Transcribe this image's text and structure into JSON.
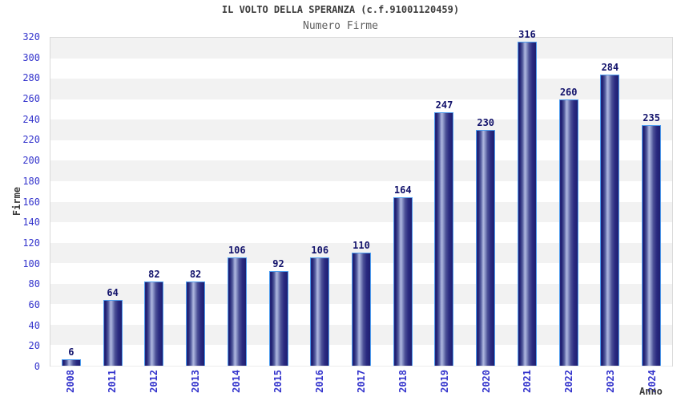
{
  "header": {
    "title": "IL VOLTO DELLA SPERANZA (c.f.91001120459)",
    "subtitle": "Numero Firme"
  },
  "chart_data": {
    "type": "bar",
    "title": "IL VOLTO DELLA SPERANZA (c.f.91001120459)",
    "subtitle": "Numero Firme",
    "categories": [
      "2008",
      "2011",
      "2012",
      "2013",
      "2014",
      "2015",
      "2016",
      "2017",
      "2018",
      "2019",
      "2020",
      "2021",
      "2022",
      "2023",
      "2024"
    ],
    "values": [
      6,
      64,
      82,
      82,
      106,
      92,
      106,
      110,
      164,
      247,
      230,
      316,
      260,
      284,
      235
    ],
    "xlabel": "Anno",
    "ylabel": "Firme",
    "ylim": [
      0,
      320
    ],
    "ytick_step": 20,
    "ytick_labels": [
      "0",
      "20",
      "40",
      "60",
      "80",
      "100",
      "120",
      "140",
      "160",
      "180",
      "200",
      "220",
      "240",
      "260",
      "280",
      "300",
      "320"
    ],
    "grid": "horizontal-alternating-bands",
    "legend": "none",
    "colors": {
      "bar_edge_dark": "#1f1f72",
      "bar_highlight": "#aeb6de",
      "bar_border": "#4e9cee",
      "value_label": "#12126b",
      "tick_label_blue": "#3333cc",
      "band_gray": "#f2f2f2",
      "band_white": "#ffffff",
      "plot_border": "#d8d8d8",
      "title_color": "#3b3b3b",
      "subtitle_color": "#5f5f5f"
    }
  }
}
